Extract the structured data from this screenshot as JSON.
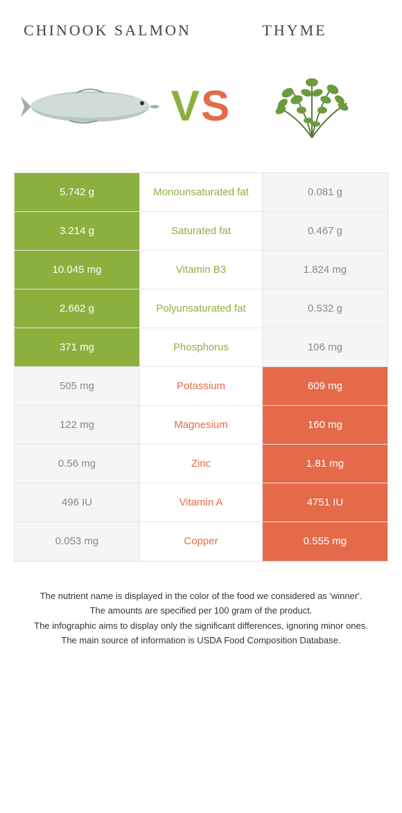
{
  "colors": {
    "left_food": "#8cb03e",
    "right_food": "#e46a4a",
    "neutral_bg": "#f5f5f5",
    "loser_text": "#888888"
  },
  "header": {
    "left_title": "CHINOOK SALMON",
    "right_title": "THYME"
  },
  "vs": {
    "v": "V",
    "s": "S"
  },
  "rows": [
    {
      "label": "Monounsaturated fat",
      "left": "5.742 g",
      "right": "0.081 g",
      "winner": "left"
    },
    {
      "label": "Saturated fat",
      "left": "3.214 g",
      "right": "0.467 g",
      "winner": "left"
    },
    {
      "label": "Vitamin B3",
      "left": "10.045 mg",
      "right": "1.824 mg",
      "winner": "left"
    },
    {
      "label": "Polyunsaturated fat",
      "left": "2.662 g",
      "right": "0.532 g",
      "winner": "left"
    },
    {
      "label": "Phosphorus",
      "left": "371 mg",
      "right": "106 mg",
      "winner": "left"
    },
    {
      "label": "Potassium",
      "left": "505 mg",
      "right": "609 mg",
      "winner": "right"
    },
    {
      "label": "Magnesium",
      "left": "122 mg",
      "right": "160 mg",
      "winner": "right"
    },
    {
      "label": "Zinc",
      "left": "0.56 mg",
      "right": "1.81 mg",
      "winner": "right"
    },
    {
      "label": "Vitamin A",
      "left": "496 IU",
      "right": "4751 IU",
      "winner": "right"
    },
    {
      "label": "Copper",
      "left": "0.053 mg",
      "right": "0.555 mg",
      "winner": "right"
    }
  ],
  "footer": {
    "line1": "The nutrient name is displayed in the color of the food we considered as 'winner'.",
    "line2": "The amounts are specified per 100 gram of the product.",
    "line3": "The infographic aims to display only the significant differences, ignoring minor ones.",
    "line4": "The main source of information is USDA Food Composition Database."
  }
}
